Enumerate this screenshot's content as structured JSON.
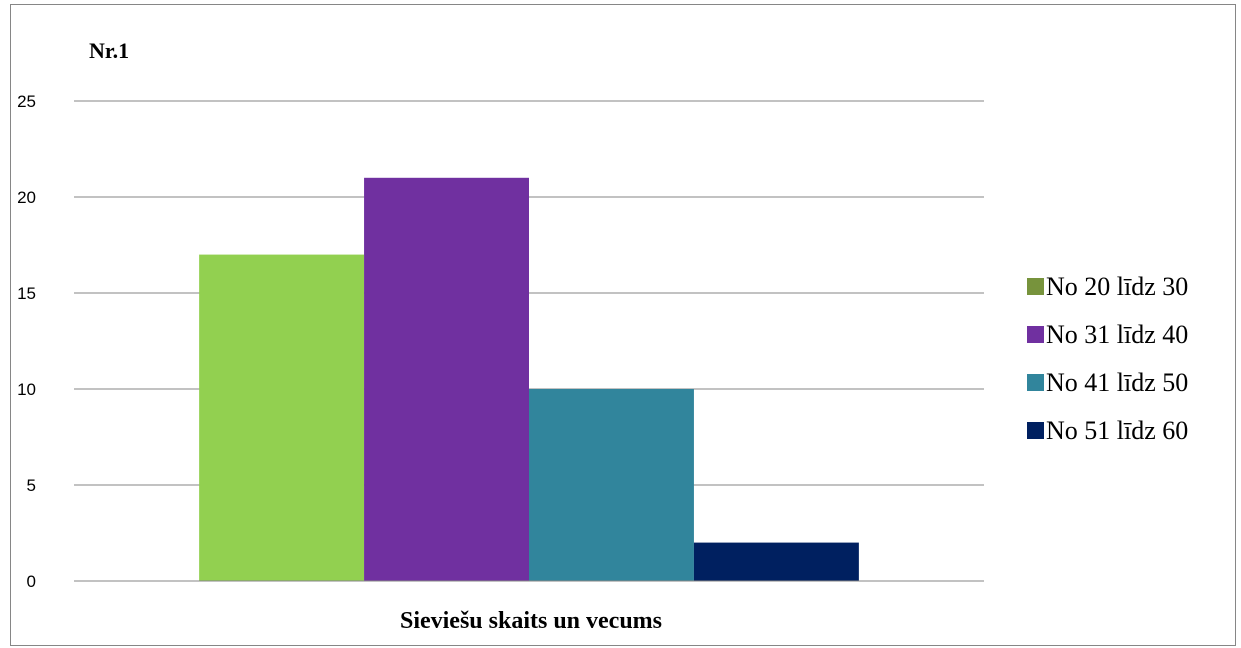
{
  "chart_data": {
    "type": "bar",
    "title": "Nr.1",
    "xlabel": "Sieviešu skaits un vecums",
    "ylabel": "",
    "ylim": [
      0,
      25
    ],
    "yticks": [
      0,
      5,
      10,
      15,
      20,
      25
    ],
    "grid": true,
    "legend_position": "right",
    "categories": [
      "Sieviešu skaits un vecums"
    ],
    "series": [
      {
        "name": "No 20 līdz 30",
        "values": [
          17
        ],
        "color": "#92d050",
        "legend_color": "#77933c"
      },
      {
        "name": "No 31 līdz 40",
        "values": [
          21
        ],
        "color": "#7030a0",
        "legend_color": "#7030a0"
      },
      {
        "name": "No 41 līdz 50",
        "values": [
          10
        ],
        "color": "#31859c",
        "legend_color": "#31859c"
      },
      {
        "name": "No 51 līdz 60",
        "values": [
          2
        ],
        "color": "#002060",
        "legend_color": "#002060"
      }
    ]
  }
}
